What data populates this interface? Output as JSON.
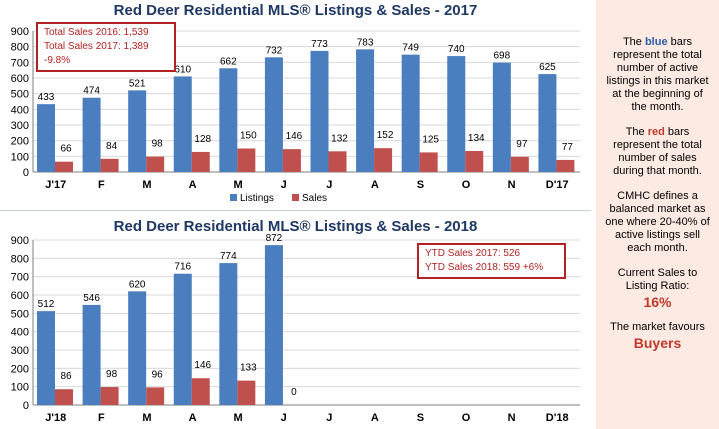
{
  "chart_data": [
    {
      "type": "bar",
      "title": "Red Deer Residential MLS® Listings & Sales - 2017",
      "categories": [
        "J'17",
        "F",
        "M",
        "A",
        "M",
        "J",
        "J",
        "A",
        "S",
        "O",
        "N",
        "D'17"
      ],
      "series": [
        {
          "name": "Listings",
          "color": "#4a7ebf",
          "values": [
            433,
            474,
            521,
            610,
            662,
            732,
            773,
            783,
            749,
            740,
            698,
            625
          ]
        },
        {
          "name": "Sales",
          "color": "#c0504d",
          "values": [
            66,
            84,
            98,
            128,
            150,
            146,
            132,
            152,
            125,
            134,
            97,
            77
          ]
        }
      ],
      "ylim": [
        0,
        900
      ],
      "yticks": [
        0,
        100,
        200,
        300,
        400,
        500,
        600,
        700,
        800,
        900
      ],
      "grid": true,
      "legend": "bottom",
      "annotation": [
        "Total Sales 2016: 1,539",
        "Total Sales 2017: 1,389 -9.8%"
      ]
    },
    {
      "type": "bar",
      "title": "Red Deer Residential MLS® Listings & Sales - 2018",
      "categories": [
        "J'18",
        "F",
        "M",
        "A",
        "M",
        "J",
        "J",
        "A",
        "S",
        "O",
        "N",
        "D'18"
      ],
      "series": [
        {
          "name": "Listings",
          "color": "#4a7ebf",
          "values": [
            512,
            546,
            620,
            716,
            774,
            872,
            null,
            null,
            null,
            null,
            null,
            null
          ]
        },
        {
          "name": "Sales",
          "color": "#c0504d",
          "values": [
            86,
            98,
            96,
            146,
            133,
            0,
            null,
            null,
            null,
            null,
            null,
            null
          ]
        }
      ],
      "ylim": [
        0,
        900
      ],
      "yticks": [
        0,
        100,
        200,
        300,
        400,
        500,
        600,
        700,
        800,
        900
      ],
      "grid": true,
      "annotation": [
        "YTD Sales 2017: 526",
        "YTD Sales 2018: 559 +6%"
      ]
    }
  ],
  "sidebar": {
    "p1_pre": "The ",
    "p1_blue": "blue",
    "p1_post": " bars represent the total number of active listings in this market at the beginning of the month.",
    "p2_pre": "The ",
    "p2_red": "red",
    "p2_post": " bars represent the total number of sales during that month.",
    "p3": "CMHC defines a balanced market as one where 20-40% of active listings sell each month.",
    "p4_label": "Current Sales to Listing Ratio:",
    "p4_value": "16%",
    "p5_label": "The market favours",
    "p5_value": "Buyers"
  }
}
